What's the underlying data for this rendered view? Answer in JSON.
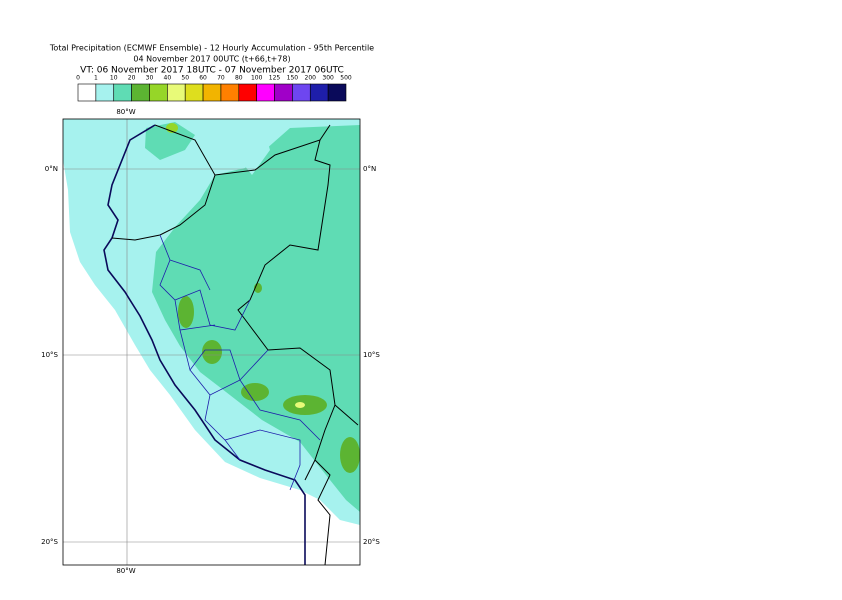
{
  "header": {
    "title_lines": [
      "Total Precipitation (ECMWF Ensemble) - 12 Hourly Accumulation - 95th Percentile",
      "04 November 2017 00UTC (t+66,t+78)",
      "VT: 06 November 2017 18UTC - 07 November 2017 06UTC"
    ]
  },
  "legend": {
    "labels": [
      0,
      1,
      10,
      20,
      30,
      40,
      50,
      60,
      70,
      80,
      100,
      125,
      150,
      200,
      300,
      500
    ],
    "colors": [
      "#ffffff",
      "#a6f2ee",
      "#5fdcb4",
      "#5cb432",
      "#96d628",
      "#e8fa78",
      "#dede1e",
      "#f2b400",
      "#ff8000",
      "#ff0000",
      "#ff00ff",
      "#a000c8",
      "#6e46f0",
      "#1e1eaa",
      "#0a0a5a"
    ]
  },
  "map": {
    "lon_labels": [
      "80°W",
      "80°W"
    ],
    "lat_labels": [
      "0°N",
      "10°S",
      "20°S",
      "0°N",
      "10°S",
      "20°S"
    ]
  }
}
